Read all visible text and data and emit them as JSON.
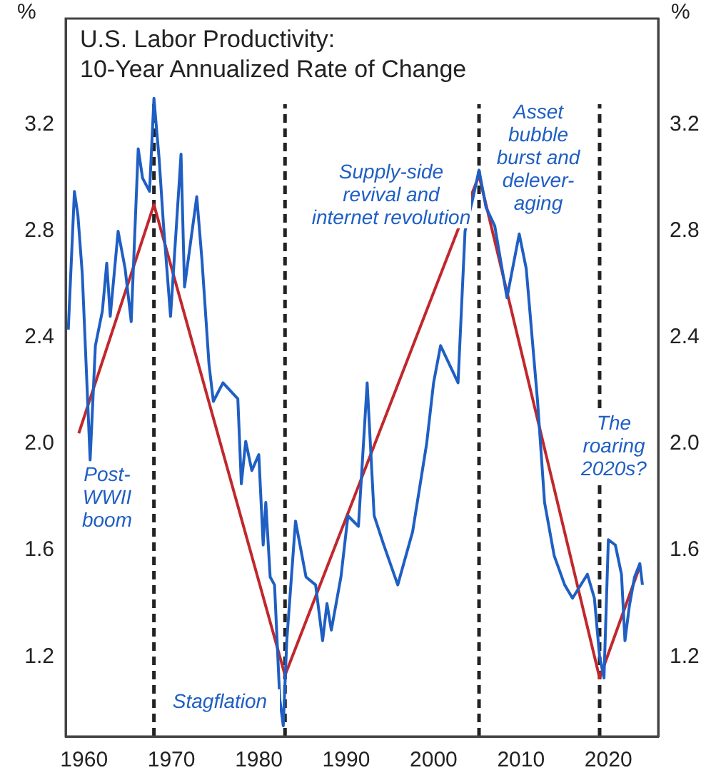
{
  "chart_data": {
    "type": "line",
    "title": "U.S. Labor Productivity:\n10-Year Annualized Rate of Change",
    "ylabel": "%",
    "y2label": "%",
    "xlim": [
      1957.9,
      2025.7
    ],
    "xticks": [
      1960,
      1970,
      1980,
      1990,
      2000,
      2010,
      2020
    ],
    "ylim": [
      0.9,
      3.6
    ],
    "yticks": [
      {
        "value": 1.2,
        "label": "1.2"
      },
      {
        "value": 1.6,
        "label": "1.6"
      },
      {
        "value": 2,
        "label": "2.0"
      },
      {
        "value": 2.4,
        "label": "2.4"
      },
      {
        "value": 2.8,
        "label": "2.8"
      },
      {
        "value": 3.2,
        "label": "3.2"
      }
    ],
    "y2lim": [
      0.9,
      3.6
    ],
    "y2ticks": [
      {
        "value": 1.2,
        "label": "1.2"
      },
      {
        "value": 1.6,
        "label": "1.6"
      },
      {
        "value": 2,
        "label": "2.0"
      },
      {
        "value": 2.4,
        "label": "2.4"
      },
      {
        "value": 2.8,
        "label": "2.8"
      },
      {
        "value": 3.2,
        "label": "3.2"
      }
    ],
    "grid": false,
    "legend": false,
    "marker": "none",
    "line_style": "solid",
    "series": [
      {
        "color": "#1f5fc4",
        "x": [
          1958.2,
          1958.9,
          1959.3,
          1959.8,
          1960.7,
          1961.3,
          1962.1,
          1962.6,
          1963.0,
          1963.9,
          1964.7,
          1965.4,
          1966.2,
          1966.7,
          1967.5,
          1968.0,
          1968.6,
          1969.1,
          1969.9,
          1971.1,
          1971.5,
          1972.9,
          1973.5,
          1974.3,
          1974.8,
          1975.9,
          1977.6,
          1978.0,
          1978.5,
          1979.2,
          1980.0,
          1980.5,
          1980.8,
          1981.3,
          1981.8,
          1982.4,
          1982.8,
          1983.2,
          1984.2,
          1985.4,
          1986.5,
          1987.3,
          1987.8,
          1988.3,
          1989.4,
          1990.2,
          1991.4,
          1992.4,
          1993.2,
          1994.3,
          1995.9,
          1997.6,
          1999.2,
          2000.0,
          2000.8,
          2002.8,
          2003.6,
          2004.4,
          2005.2,
          2006.0,
          2007.0,
          2008.4,
          2009.8,
          2010.6,
          2011.9,
          2012.7,
          2013.8,
          2015.0,
          2015.9,
          2017.6,
          2018.4,
          2019.0,
          2019.5,
          2020.0,
          2020.8,
          2021.5,
          2021.9,
          2022.4,
          2023.0,
          2023.6,
          2023.9
        ],
        "values": [
          2.43,
          2.95,
          2.86,
          2.64,
          1.94,
          2.37,
          2.5,
          2.68,
          2.48,
          2.8,
          2.66,
          2.46,
          3.11,
          3.0,
          2.95,
          3.3,
          3.07,
          2.82,
          2.48,
          3.09,
          2.59,
          2.93,
          2.69,
          2.3,
          2.16,
          2.23,
          2.17,
          1.85,
          2.01,
          1.9,
          1.96,
          1.62,
          1.78,
          1.5,
          1.47,
          1.04,
          0.94,
          1.26,
          1.71,
          1.5,
          1.47,
          1.26,
          1.4,
          1.3,
          1.5,
          1.73,
          1.69,
          2.23,
          1.73,
          1.62,
          1.47,
          1.67,
          2.0,
          2.23,
          2.37,
          2.23,
          2.8,
          2.91,
          3.03,
          2.89,
          2.82,
          2.55,
          2.79,
          2.66,
          2.16,
          1.78,
          1.58,
          1.47,
          1.42,
          1.51,
          1.42,
          1.2,
          1.12,
          1.64,
          1.62,
          1.51,
          1.26,
          1.39,
          1.5,
          1.55,
          1.47
        ]
      },
      {
        "type": "line",
        "color": "#c0282d",
        "x": [
          1959.4,
          1968.0,
          1983.0,
          2005.2,
          2019.0,
          2023.6
        ],
        "values": [
          2.04,
          2.9,
          1.13,
          3.01,
          1.12,
          1.54
        ]
      }
    ],
    "ref_lines": [
      {
        "axis": "x",
        "value": 1968,
        "color": "#222222",
        "line_style": "dashed"
      },
      {
        "axis": "x",
        "value": 1983,
        "color": "#222222",
        "line_style": "dashed"
      },
      {
        "axis": "x",
        "value": 2005.2,
        "color": "#222222",
        "line_style": "dashed"
      },
      {
        "axis": "x",
        "value": 2019,
        "color": "#222222",
        "line_style": "dashed"
      }
    ],
    "annotations": [
      "Post-WWII boom",
      "Stagflation",
      "Supply-side revival and internet revolution",
      "Asset bubble burst and delever-aging",
      "The roaring 2020s?"
    ]
  }
}
